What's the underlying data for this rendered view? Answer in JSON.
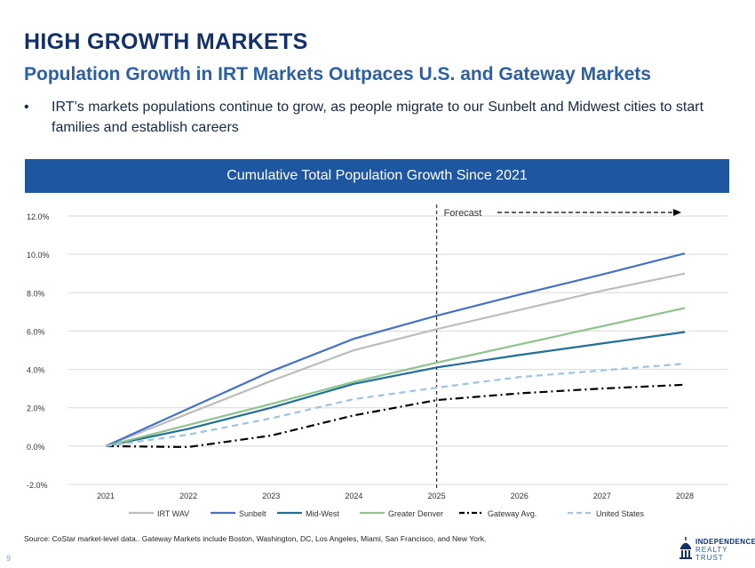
{
  "header": {
    "title": "HIGH GROWTH MARKETS",
    "subtitle": "Population Growth in IRT Markets Outpaces U.S. and Gateway Markets",
    "bullet_symbol": "•",
    "bullet": "IRT’s markets populations continue to grow, as people migrate to our Sunbelt and Midwest cities to start families and establish careers"
  },
  "chart_data": {
    "type": "line",
    "title": "Cumulative Total Population Growth Since 2021",
    "x": [
      "2021",
      "2022",
      "2023",
      "2024",
      "2025",
      "2026",
      "2027",
      "2028"
    ],
    "ylim": [
      -2,
      12
    ],
    "yticks": [
      -2,
      0,
      2,
      4,
      6,
      8,
      10,
      12
    ],
    "ytick_labels": [
      "-2.0%",
      "0.0%",
      "2.0%",
      "4.0%",
      "6.0%",
      "8.0%",
      "10.0%",
      "12.0%"
    ],
    "grid": true,
    "forecast_start": "2025",
    "forecast_label": "Forecast",
    "legend_position": "bottom",
    "series": [
      {
        "name": "IRT WAV",
        "color": "#bdbdbd",
        "dash": "solid",
        "values": [
          0,
          1.7,
          3.4,
          5.0,
          6.1,
          7.1,
          8.1,
          9.0
        ]
      },
      {
        "name": "Sunbelt",
        "color": "#4472c4",
        "dash": "solid",
        "values": [
          0,
          1.95,
          3.9,
          5.6,
          6.8,
          7.9,
          8.95,
          10.05
        ]
      },
      {
        "name": "Mid-West",
        "color": "#1f6f9a",
        "dash": "solid",
        "values": [
          0,
          0.9,
          2.0,
          3.25,
          4.1,
          4.75,
          5.35,
          5.95
        ]
      },
      {
        "name": "Greater Denver",
        "color": "#8fc48d",
        "dash": "solid",
        "values": [
          0,
          1.1,
          2.2,
          3.35,
          4.35,
          5.3,
          6.25,
          7.2
        ]
      },
      {
        "name": "Gateway Avg.",
        "color": "#000000",
        "dash": "dashdot",
        "values": [
          0,
          -0.05,
          0.55,
          1.6,
          2.4,
          2.75,
          3.0,
          3.2
        ]
      },
      {
        "name": "United States",
        "color": "#9dc3e6",
        "dash": "dashed",
        "values": [
          0,
          0.6,
          1.45,
          2.45,
          3.05,
          3.6,
          3.95,
          4.3
        ]
      }
    ]
  },
  "footer": {
    "source": "Source: CoStar market-level data.. Gateway Markets include Boston, Washington, DC, Los Angeles, Miami, San Francisco, and New York.",
    "page_number": "9",
    "logo_top": "INDEPENDENCE",
    "logo_bottom": "REALTY TRUST"
  }
}
